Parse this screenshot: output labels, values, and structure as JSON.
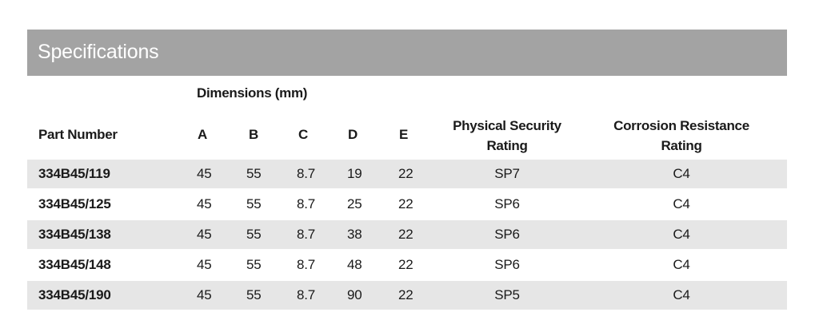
{
  "title": "Specifications",
  "group_header": "Dimensions (mm)",
  "columns": {
    "part": "Part Number",
    "a": "A",
    "b": "B",
    "c": "C",
    "d": "D",
    "e": "E",
    "physical_line1": "Physical Security",
    "physical_line2": "Rating",
    "corrosion_line1": "Corrosion Resistance",
    "corrosion_line2": "Rating"
  },
  "rows": [
    {
      "part": "334B45/119",
      "a": "45",
      "b": "55",
      "c": "8.7",
      "d": "19",
      "e": "22",
      "physical": "SP7",
      "corrosion": "C4"
    },
    {
      "part": "334B45/125",
      "a": "45",
      "b": "55",
      "c": "8.7",
      "d": "25",
      "e": "22",
      "physical": "SP6",
      "corrosion": "C4"
    },
    {
      "part": "334B45/138",
      "a": "45",
      "b": "55",
      "c": "8.7",
      "d": "38",
      "e": "22",
      "physical": "SP6",
      "corrosion": "C4"
    },
    {
      "part": "334B45/148",
      "a": "45",
      "b": "55",
      "c": "8.7",
      "d": "48",
      "e": "22",
      "physical": "SP6",
      "corrosion": "C4"
    },
    {
      "part": "334B45/190",
      "a": "45",
      "b": "55",
      "c": "8.7",
      "d": "90",
      "e": "22",
      "physical": "SP5",
      "corrosion": "C4"
    }
  ],
  "colors": {
    "banner": "#a3a3a3",
    "row_shade": "#e6e6e6",
    "text": "#1a1a1a"
  }
}
